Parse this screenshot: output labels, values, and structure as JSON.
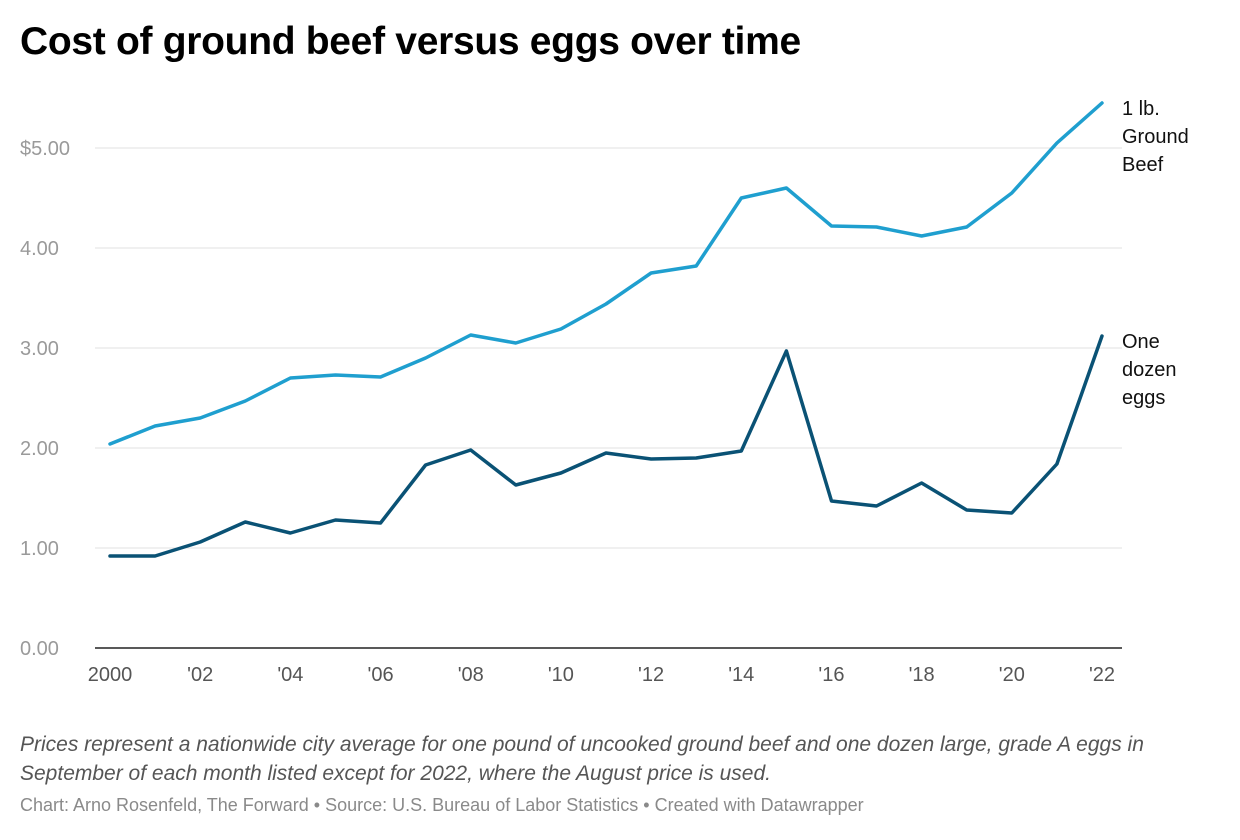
{
  "chart_data": {
    "type": "line",
    "title": "Cost of ground beef versus eggs over time",
    "note": "Prices represent a nationwide city average for one pound of uncooked ground beef and one dozen large, grade A eggs in September of each month listed except for 2022, where the August price is used.",
    "credit": "Chart: Arno Rosenfeld, The Forward • Source: U.S. Bureau of Labor Statistics • Created with Datawrapper",
    "x": [
      2000,
      2001,
      2002,
      2003,
      2004,
      2005,
      2006,
      2007,
      2008,
      2009,
      2010,
      2011,
      2012,
      2013,
      2014,
      2015,
      2016,
      2017,
      2018,
      2019,
      2020,
      2021,
      2022
    ],
    "xlim": [
      2000,
      2022
    ],
    "ylim": [
      0,
      5.5
    ],
    "yticks": [
      0,
      1,
      2,
      3,
      4,
      5
    ],
    "ytick_labels": [
      "0.00",
      "1.00",
      "2.00",
      "3.00",
      "4.00",
      "$5.00"
    ],
    "xticks": [
      2000,
      2002,
      2004,
      2006,
      2008,
      2010,
      2012,
      2014,
      2016,
      2018,
      2020,
      2022
    ],
    "xtick_labels": [
      "2000",
      "'02",
      "'04",
      "'06",
      "'08",
      "'10",
      "'12",
      "'14",
      "'16",
      "'18",
      "'20",
      "'22"
    ],
    "grid": true,
    "series": [
      {
        "name": "1 lb. Ground Beef",
        "label_lines": [
          "1 lb.",
          "Ground",
          "Beef"
        ],
        "color": "#1f9fcf",
        "values": [
          2.04,
          2.22,
          2.3,
          2.47,
          2.7,
          2.73,
          2.71,
          2.9,
          3.13,
          3.05,
          3.19,
          3.44,
          3.75,
          3.82,
          4.5,
          4.6,
          4.22,
          4.21,
          4.12,
          4.21,
          4.55,
          5.05,
          5.45
        ]
      },
      {
        "name": "One dozen eggs",
        "label_lines": [
          "One",
          "dozen",
          "eggs"
        ],
        "color": "#0a5275",
        "values": [
          0.92,
          0.92,
          1.06,
          1.26,
          1.15,
          1.28,
          1.25,
          1.83,
          1.98,
          1.63,
          1.75,
          1.95,
          1.89,
          1.9,
          1.97,
          2.97,
          1.47,
          1.42,
          1.65,
          1.38,
          1.35,
          1.84,
          3.12
        ]
      }
    ]
  }
}
